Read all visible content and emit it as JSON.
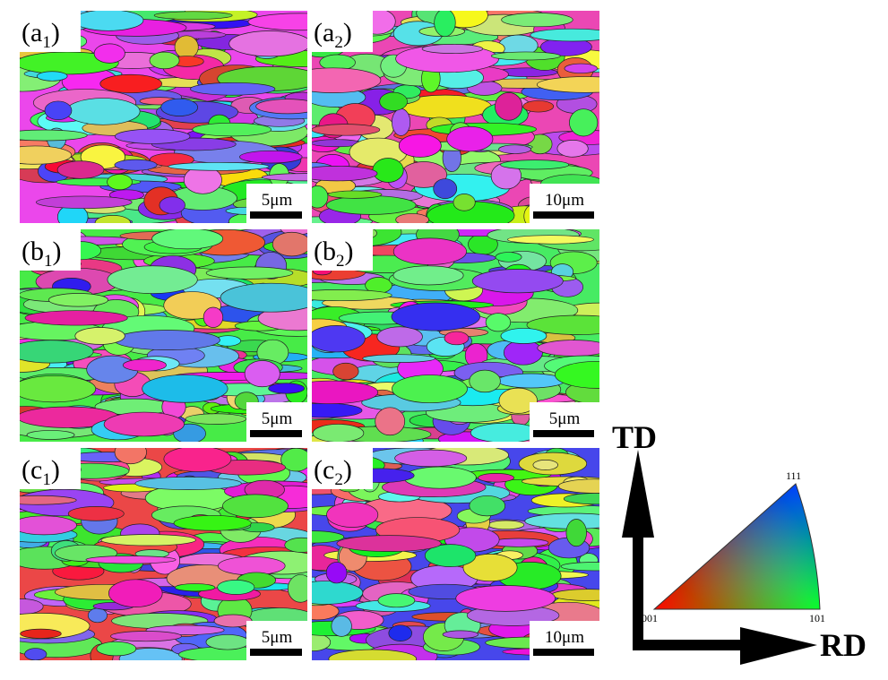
{
  "panels": [
    {
      "label": {
        "open": "(a",
        "sub": "1",
        "close": ")"
      },
      "scale_bar": "5μm"
    },
    {
      "label": {
        "open": "(a",
        "sub": "2",
        "close": ")"
      },
      "scale_bar": "10μm"
    },
    {
      "label": {
        "open": "(b",
        "sub": "1",
        "close": ")"
      },
      "scale_bar": "5μm"
    },
    {
      "label": {
        "open": "(b",
        "sub": "2",
        "close": ")"
      },
      "scale_bar": "5μm"
    },
    {
      "label": {
        "open": "(c",
        "sub": "1",
        "close": ")"
      },
      "scale_bar": "5μm"
    },
    {
      "label": {
        "open": "(c",
        "sub": "2",
        "close": ")"
      },
      "scale_bar": "10μm"
    }
  ],
  "axes": {
    "vertical": "TD",
    "horizontal": "RD"
  },
  "ipf_legend": {
    "corner_001": "001",
    "corner_101": "101",
    "corner_111": "111"
  }
}
